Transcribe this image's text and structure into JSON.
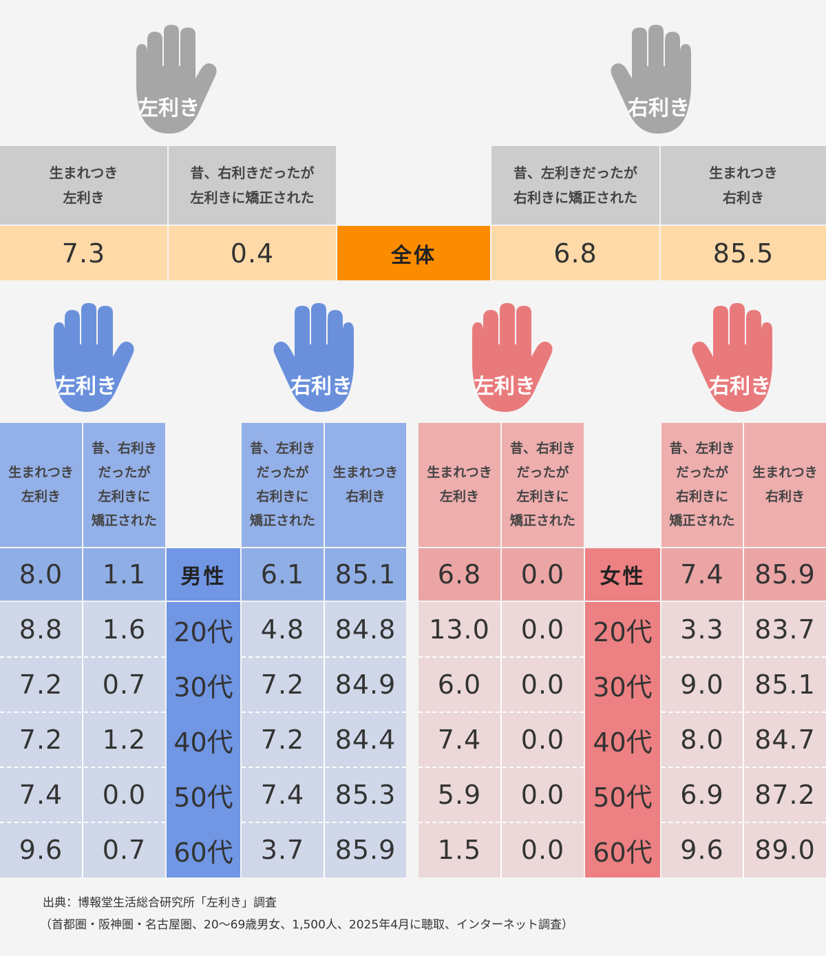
{
  "colors": {
    "background": "#f4f4f4",
    "gray_hand": "#a6a6a6",
    "gray_header": "#cccccc",
    "overall_value_bg": "#ffdaa8",
    "overall_label_bg": "#fb8c00",
    "male_hand": "#6a90dc",
    "male_header": "#94b0e8",
    "male_label": "#7096e4",
    "male_total_bg": "#90aee6",
    "male_rows_bg": "#cfd7e8",
    "female_hand": "#e97a7c",
    "female_header": "#eeaeae",
    "female_label": "#ec8082",
    "female_total_bg": "#eba5a5",
    "female_rows_bg": "#ecd8d8"
  },
  "icons": [
    "hand-icon"
  ],
  "hands": {
    "left": "左利き",
    "right": "右利き"
  },
  "headers": {
    "born_left": "生まれつき\n左利き",
    "was_right_corrected_left": "昔、右利きだったが\n左利きに矯正された",
    "was_left_corrected_right": "昔、左利きだったが\n右利きに矯正された",
    "born_right": "生まれつき\n右利き",
    "born_left_sm": "生まれつき\n左利き",
    "was_right_corrected_left_sm": "昔、右利き\nだったが\n左利きに\n矯正された",
    "was_left_corrected_right_sm": "昔、左利き\nだったが\n右利きに\n矯正された",
    "born_right_sm": "生まれつき\n右利き"
  },
  "overall": {
    "label": "全体",
    "born_left": "7.3",
    "corrected_to_left": "0.4",
    "corrected_to_right": "6.8",
    "born_right": "85.5"
  },
  "male": {
    "label": "男性",
    "total": [
      "8.0",
      "1.1",
      "6.1",
      "85.1"
    ],
    "rows": [
      {
        "age": "20代",
        "values": [
          "8.8",
          "1.6",
          "4.8",
          "84.8"
        ]
      },
      {
        "age": "30代",
        "values": [
          "7.2",
          "0.7",
          "7.2",
          "84.9"
        ]
      },
      {
        "age": "40代",
        "values": [
          "7.2",
          "1.2",
          "7.2",
          "84.4"
        ]
      },
      {
        "age": "50代",
        "values": [
          "7.4",
          "0.0",
          "7.4",
          "85.3"
        ]
      },
      {
        "age": "60代",
        "values": [
          "9.6",
          "0.7",
          "3.7",
          "85.9"
        ]
      }
    ]
  },
  "female": {
    "label": "女性",
    "total": [
      "6.8",
      "0.0",
      "7.4",
      "85.9"
    ],
    "rows": [
      {
        "age": "20代",
        "values": [
          "13.0",
          "0.0",
          "3.3",
          "83.7"
        ]
      },
      {
        "age": "30代",
        "values": [
          "6.0",
          "0.0",
          "9.0",
          "85.1"
        ]
      },
      {
        "age": "40代",
        "values": [
          "7.4",
          "0.0",
          "8.0",
          "84.7"
        ]
      },
      {
        "age": "50代",
        "values": [
          "5.9",
          "0.0",
          "6.9",
          "87.2"
        ]
      },
      {
        "age": "60代",
        "values": [
          "1.5",
          "0.0",
          "9.6",
          "89.0"
        ]
      }
    ]
  },
  "source": {
    "line1": "出典：博報堂生活総合研究所「左利き」調査",
    "line2": "（首都圏・阪神圏・名古屋圏、20～69歳男女、1,500人、2025年4月に聴取、インターネット調査）"
  },
  "chart_data": {
    "type": "table",
    "columns": [
      "生まれつき左利き",
      "昔、右利きだったが左利きに矯正された",
      "昔、左利きだったが右利きに矯正された",
      "生まれつき右利き"
    ],
    "rows": [
      {
        "group": "全体",
        "values": [
          7.3,
          0.4,
          6.8,
          85.5
        ]
      },
      {
        "group": "男性",
        "values": [
          8.0,
          1.1,
          6.1,
          85.1
        ]
      },
      {
        "group": "男性 20代",
        "values": [
          8.8,
          1.6,
          4.8,
          84.8
        ]
      },
      {
        "group": "男性 30代",
        "values": [
          7.2,
          0.7,
          7.2,
          84.9
        ]
      },
      {
        "group": "男性 40代",
        "values": [
          7.2,
          1.2,
          7.2,
          84.4
        ]
      },
      {
        "group": "男性 50代",
        "values": [
          7.4,
          0.0,
          7.4,
          85.3
        ]
      },
      {
        "group": "男性 60代",
        "values": [
          9.6,
          0.7,
          3.7,
          85.9
        ]
      },
      {
        "group": "女性",
        "values": [
          6.8,
          0.0,
          7.4,
          85.9
        ]
      },
      {
        "group": "女性 20代",
        "values": [
          13.0,
          0.0,
          3.3,
          83.7
        ]
      },
      {
        "group": "女性 30代",
        "values": [
          6.0,
          0.0,
          9.0,
          85.1
        ]
      },
      {
        "group": "女性 40代",
        "values": [
          7.4,
          0.0,
          8.0,
          84.7
        ]
      },
      {
        "group": "女性 50代",
        "values": [
          5.9,
          0.0,
          6.9,
          87.2
        ]
      },
      {
        "group": "女性 60代",
        "values": [
          1.5,
          0.0,
          9.6,
          89.0
        ]
      }
    ]
  }
}
